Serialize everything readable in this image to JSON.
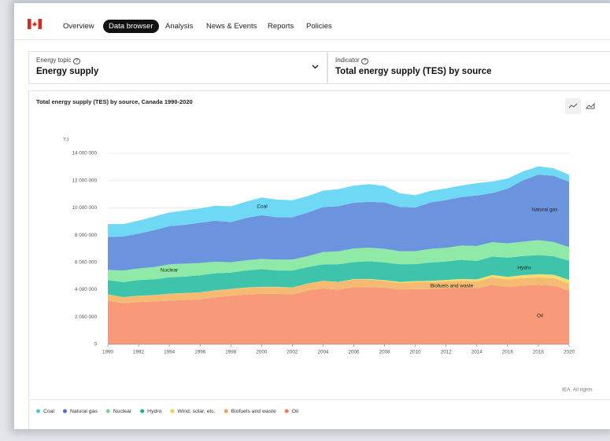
{
  "nav": {
    "items": [
      "Overview",
      "Data browser",
      "Analysis",
      "News & Events",
      "Reports",
      "Policies"
    ],
    "active": 1
  },
  "selectors": [
    {
      "label": "Energy topic",
      "value": "Energy supply"
    },
    {
      "label": "Indicator",
      "value": "Total energy supply (TES) by source"
    }
  ],
  "source": "IEA. All rights",
  "chart_data": {
    "type": "stacked_area",
    "title": "Total energy supply (TES) by source, Canada 1990-2020",
    "y_label": "TJ",
    "x": [
      1990,
      1991,
      1992,
      1993,
      1994,
      1995,
      1996,
      1997,
      1998,
      1999,
      2000,
      2001,
      2002,
      2003,
      2004,
      2005,
      2006,
      2007,
      2008,
      2009,
      2010,
      2011,
      2012,
      2013,
      2014,
      2015,
      2016,
      2017,
      2018,
      2019,
      2020
    ],
    "xlim": [
      1990,
      2020
    ],
    "xticks": [
      1990,
      1992,
      1994,
      1996,
      1998,
      2000,
      2002,
      2004,
      2006,
      2008,
      2010,
      2012,
      2014,
      2016,
      2018,
      2020
    ],
    "ylim": [
      0,
      14000000
    ],
    "yticks": [
      0,
      {
        "value": 2000000,
        "label": "2 000 000"
      },
      {
        "value": 4000000,
        "label": "4 000 000"
      },
      {
        "value": 6000000,
        "label": "6 000 000"
      },
      {
        "value": 8000000,
        "label": "8 000 000"
      },
      {
        "value": 10000000,
        "label": "10 000 000"
      },
      {
        "value": 12000000,
        "label": "12 000 000"
      },
      {
        "value": 14000000,
        "label": "14 000 000"
      }
    ],
    "grid": true,
    "legend": "bottom",
    "series": [
      {
        "name": "Coal",
        "color": "#6fd8f5",
        "dot": "#4cc3e3",
        "values": [
          950000,
          900000,
          950000,
          1000000,
          1000000,
          1050000,
          1050000,
          1100000,
          1150000,
          1200000,
          1300000,
          1300000,
          1250000,
          1200000,
          1200000,
          1250000,
          1250000,
          1300000,
          1200000,
          1000000,
          900000,
          850000,
          850000,
          850000,
          900000,
          850000,
          750000,
          650000,
          600000,
          550000,
          500000
        ]
      },
      {
        "name": "Natural gas",
        "color": "#6c93dd",
        "dot": "#4a72c9",
        "values": [
          2400000,
          2500000,
          2550000,
          2700000,
          2800000,
          2850000,
          2950000,
          3000000,
          2950000,
          3100000,
          3200000,
          3100000,
          3100000,
          3200000,
          3300000,
          3300000,
          3350000,
          3350000,
          3400000,
          3250000,
          3200000,
          3400000,
          3500000,
          3550000,
          3700000,
          3600000,
          4000000,
          4500000,
          4800000,
          4850000,
          4800000
        ]
      },
      {
        "name": "Nuclear",
        "color": "#8eeaa6",
        "dot": "#6fdc8c",
        "values": [
          750000,
          850000,
          850000,
          900000,
          950000,
          950000,
          900000,
          850000,
          750000,
          750000,
          750000,
          800000,
          800000,
          800000,
          900000,
          950000,
          1000000,
          1000000,
          1000000,
          950000,
          950000,
          1000000,
          1000000,
          1050000,
          1100000,
          1050000,
          1050000,
          1050000,
          1100000,
          1050000,
          1000000
        ]
      },
      {
        "name": "Hydro",
        "color": "#3ec4ab",
        "dot": "#1fae93",
        "values": [
          1050000,
          1100000,
          1150000,
          1150000,
          1200000,
          1200000,
          1250000,
          1250000,
          1200000,
          1250000,
          1300000,
          1200000,
          1250000,
          1200000,
          1200000,
          1300000,
          1250000,
          1300000,
          1300000,
          1300000,
          1250000,
          1350000,
          1350000,
          1400000,
          1350000,
          1350000,
          1400000,
          1400000,
          1400000,
          1350000,
          1400000
        ]
      },
      {
        "name": "Wind, solar, etc.",
        "color": "#f6dc6e",
        "dot": "#f0cf48",
        "values": [
          10000,
          10000,
          10000,
          10000,
          10000,
          10000,
          10000,
          10000,
          10000,
          10000,
          10000,
          10000,
          10000,
          10000,
          10000,
          20000,
          30000,
          40000,
          50000,
          70000,
          80000,
          100000,
          120000,
          140000,
          160000,
          180000,
          200000,
          220000,
          240000,
          250000,
          270000
        ]
      },
      {
        "name": "Biofuels and waste",
        "color": "#f5bb72",
        "dot": "#f0a54c",
        "values": [
          450000,
          450000,
          450000,
          450000,
          500000,
          500000,
          500000,
          500000,
          500000,
          500000,
          500000,
          500000,
          500000,
          500000,
          550000,
          550000,
          550000,
          550000,
          500000,
          500000,
          500000,
          500000,
          500000,
          500000,
          500000,
          550000,
          550000,
          550000,
          550000,
          550000,
          500000
        ]
      },
      {
        "name": "Oil",
        "color": "#f89a7a",
        "dot": "#f27a56",
        "values": [
          3200000,
          3000000,
          3100000,
          3150000,
          3200000,
          3250000,
          3300000,
          3450000,
          3550000,
          3650000,
          3700000,
          3700000,
          3650000,
          3950000,
          4100000,
          4000000,
          4200000,
          4200000,
          4150000,
          4000000,
          4050000,
          4050000,
          4100000,
          4150000,
          4100000,
          4350000,
          4200000,
          4300000,
          4350000,
          4300000,
          3950000
        ]
      }
    ],
    "annotations": [
      "Coal",
      "Natural gas",
      "Nuclear",
      "Hydro",
      "Biofuels and waste",
      "Oil"
    ]
  }
}
